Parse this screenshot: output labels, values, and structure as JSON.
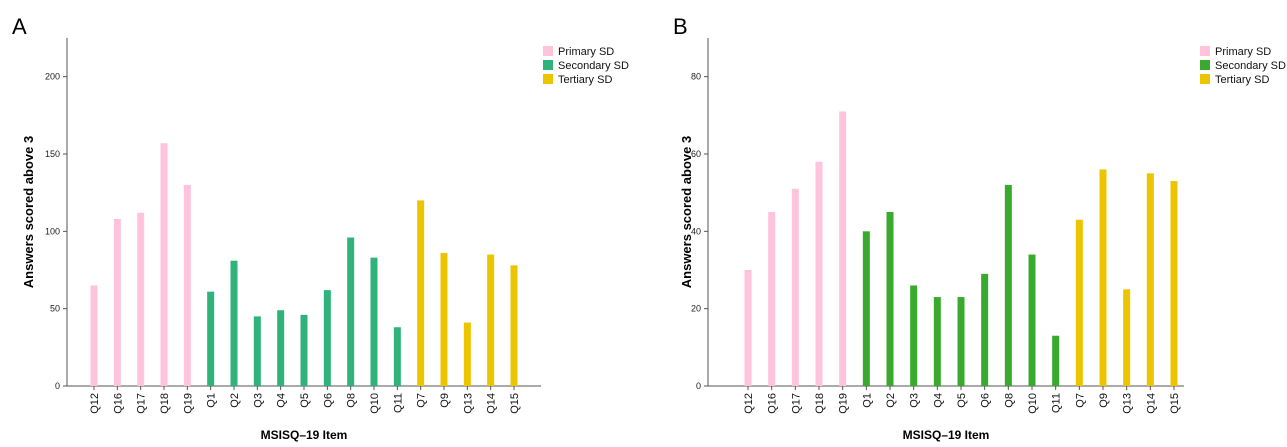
{
  "chart_data": [
    {
      "type": "bar",
      "panel_label": "A",
      "categories": [
        "Q12",
        "Q16",
        "Q17",
        "Q18",
        "Q19",
        "Q1",
        "Q2",
        "Q3",
        "Q4",
        "Q5",
        "Q6",
        "Q8",
        "Q10",
        "Q11",
        "Q7",
        "Q9",
        "Q13",
        "Q14",
        "Q15"
      ],
      "values": [
        65,
        108,
        112,
        157,
        130,
        61,
        81,
        45,
        49,
        46,
        62,
        96,
        83,
        38,
        120,
        86,
        41,
        85,
        78
      ],
      "groups": [
        "Primary SD",
        "Primary SD",
        "Primary SD",
        "Primary SD",
        "Primary SD",
        "Secondary SD",
        "Secondary SD",
        "Secondary SD",
        "Secondary SD",
        "Secondary SD",
        "Secondary SD",
        "Secondary SD",
        "Secondary SD",
        "Secondary SD",
        "Tertiary SD",
        "Tertiary SD",
        "Tertiary SD",
        "Tertiary SD",
        "Tertiary SD"
      ],
      "legend": [
        {
          "name": "Primary SD",
          "color": "#ffc3dc"
        },
        {
          "name": "Secondary SD",
          "color": "#2fb37a"
        },
        {
          "name": "Tertiary SD",
          "color": "#ecc400"
        }
      ],
      "xlabel": "MSISQ–19 Item",
      "ylabel": "Answers scored above 3",
      "ylim": [
        0,
        225
      ],
      "yticks": [
        0,
        50,
        100,
        150,
        200
      ],
      "legend_position": "top-right",
      "grid": false
    },
    {
      "type": "bar",
      "panel_label": "B",
      "categories": [
        "Q12",
        "Q16",
        "Q17",
        "Q18",
        "Q19",
        "Q1",
        "Q2",
        "Q3",
        "Q4",
        "Q5",
        "Q6",
        "Q8",
        "Q10",
        "Q11",
        "Q7",
        "Q9",
        "Q13",
        "Q14",
        "Q15"
      ],
      "values": [
        30,
        45,
        51,
        58,
        71,
        40,
        45,
        26,
        23,
        23,
        29,
        52,
        34,
        13,
        43,
        56,
        25,
        55,
        53
      ],
      "groups": [
        "Primary SD",
        "Primary SD",
        "Primary SD",
        "Primary SD",
        "Primary SD",
        "Secondary SD",
        "Secondary SD",
        "Secondary SD",
        "Secondary SD",
        "Secondary SD",
        "Secondary SD",
        "Secondary SD",
        "Secondary SD",
        "Secondary SD",
        "Tertiary SD",
        "Tertiary SD",
        "Tertiary SD",
        "Tertiary SD",
        "Tertiary SD"
      ],
      "legend": [
        {
          "name": "Primary SD",
          "color": "#ffc3dc"
        },
        {
          "name": "Secondary SD",
          "color": "#3aaa2e"
        },
        {
          "name": "Tertiary SD",
          "color": "#ecc400"
        }
      ],
      "xlabel": "MSISQ–19 Item",
      "ylabel": "Answers scored above 3",
      "ylim": [
        0,
        90
      ],
      "yticks": [
        0,
        20,
        40,
        60,
        80
      ],
      "legend_position": "top-right",
      "grid": false
    }
  ]
}
